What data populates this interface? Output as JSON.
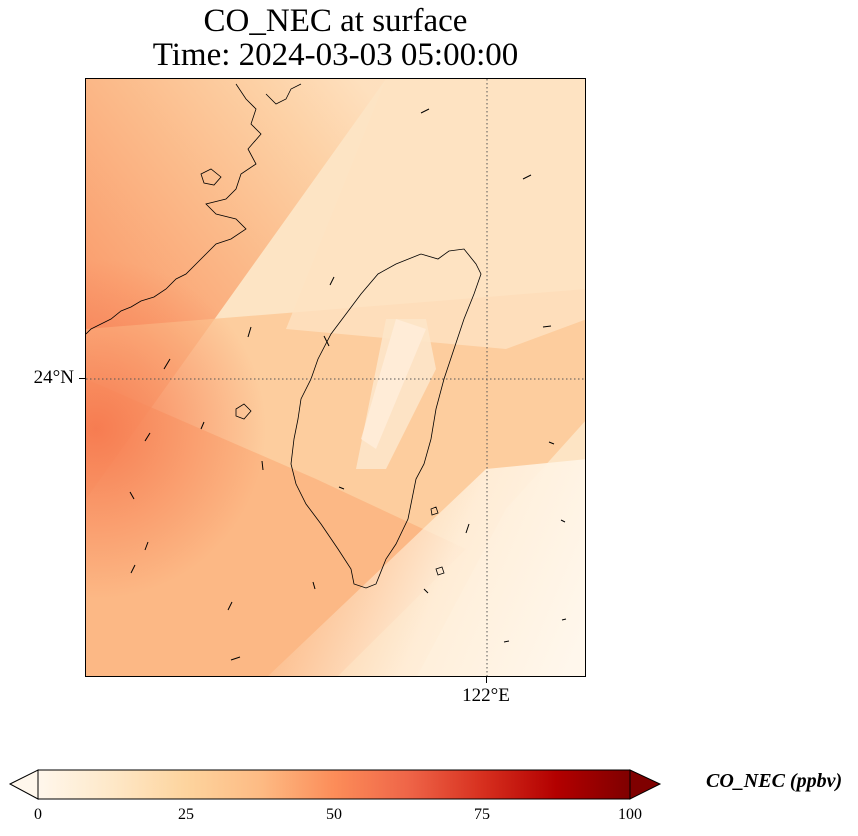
{
  "title": {
    "line1": "CO_NEC at surface",
    "line2": "Time: 2024-03-03 05:00:00"
  },
  "map": {
    "variable": "CO_NEC",
    "level": "surface",
    "time": "2024-03-03 05:00:00",
    "gridlines": {
      "latitude": "24°N",
      "longitude": "122°E"
    },
    "features": [
      "coastline",
      "wind-vectors",
      "gridlines"
    ],
    "colormap": "OrRd"
  },
  "colorbar": {
    "label": "CO_NEC (ppbv)",
    "ticks": [
      "0",
      "25",
      "50",
      "75",
      "100"
    ],
    "min": 0,
    "max": 100,
    "extend": "both",
    "colors": [
      "#fff7ec",
      "#fee8c8",
      "#fdd49e",
      "#fdbb84",
      "#fc8d59",
      "#ef6548",
      "#d7301f",
      "#b30000",
      "#7f0000"
    ]
  }
}
